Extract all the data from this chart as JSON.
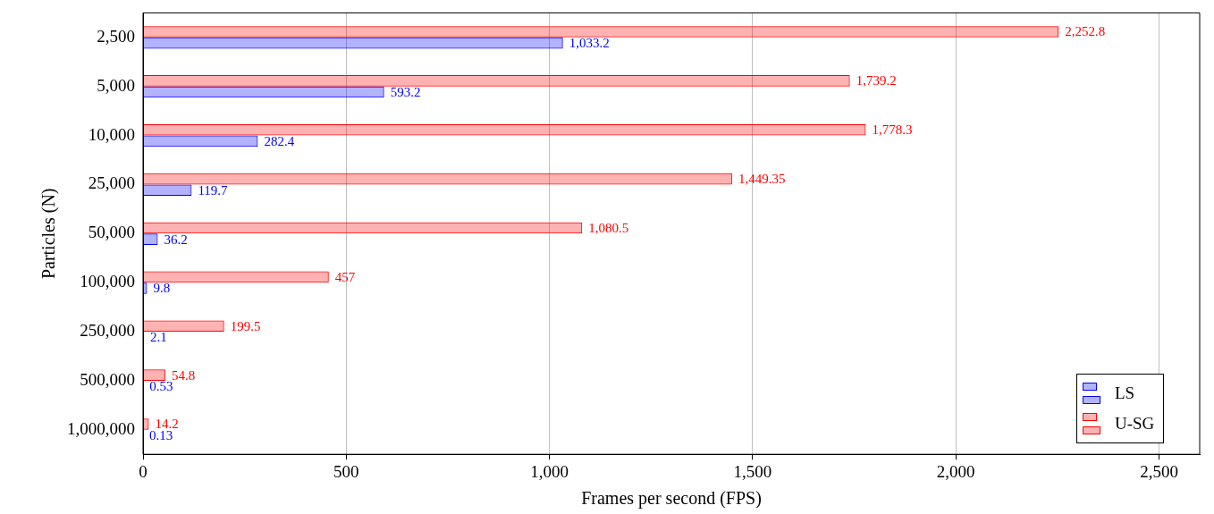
{
  "chart_data": {
    "type": "bar",
    "orientation": "horizontal",
    "xlabel": "Frames per second (FPS)",
    "ylabel": "Particles (N)",
    "categories": [
      "2,500",
      "5,000",
      "10,000",
      "25,000",
      "50,000",
      "100,000",
      "250,000",
      "500,000",
      "1,000,000"
    ],
    "series": [
      {
        "name": "LS",
        "color": "#0000ff",
        "values": [
          1033.2,
          593.2,
          282.4,
          119.7,
          36.2,
          9.8,
          2.1,
          0.53,
          0.13
        ],
        "value_labels": [
          "1,033.2",
          "593.2",
          "282.4",
          "119.7",
          "36.2",
          "9.8",
          "2.1",
          "0.53",
          "0.13"
        ]
      },
      {
        "name": "U-SG",
        "color": "#ff0000",
        "values": [
          2252.8,
          1739.2,
          1778.3,
          1449.35,
          1080.5,
          457,
          199.5,
          54.8,
          14.2
        ],
        "value_labels": [
          "2,252.8",
          "1,739.2",
          "1,778.3",
          "1,449.35",
          "1,080.5",
          "457",
          "199.5",
          "54.8",
          "14.2"
        ]
      }
    ],
    "xlim": [
      0,
      2600
    ],
    "xticks": [
      0,
      500,
      {
        "value": 1000,
        "label": "1,000"
      },
      {
        "value": 1500,
        "label": "1,500"
      },
      {
        "value": 2000,
        "label": "2,000"
      },
      {
        "value": 2500,
        "label": "2,500"
      }
    ],
    "grid": "x",
    "legend": "bottom right"
  }
}
